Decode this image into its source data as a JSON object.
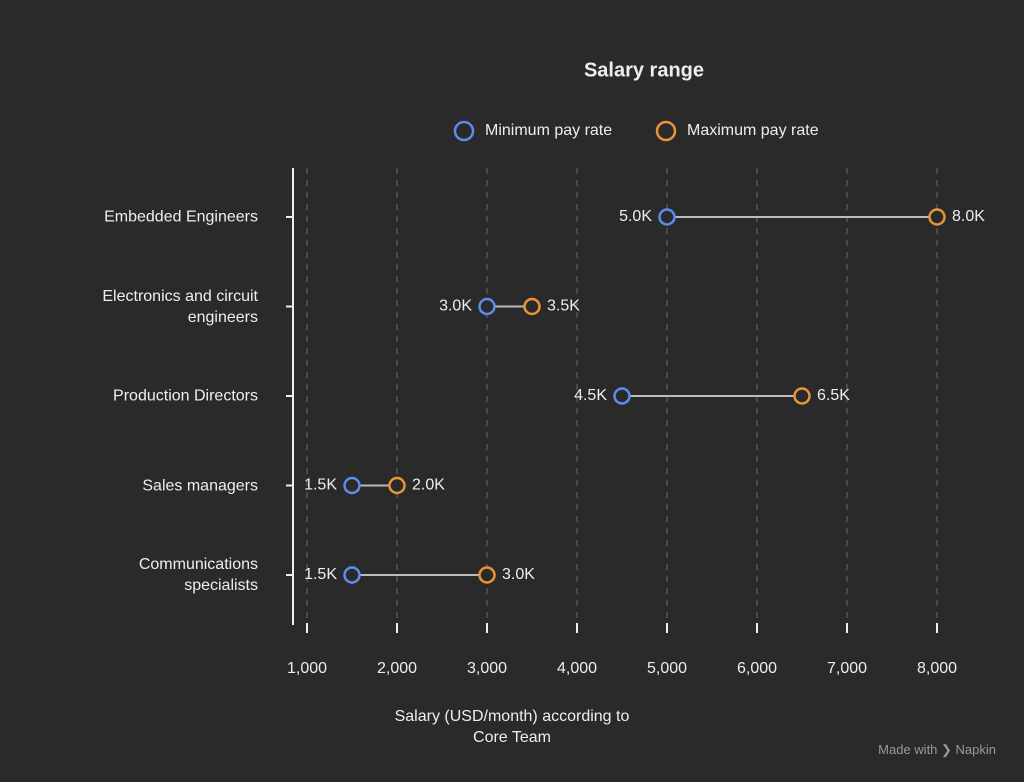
{
  "chart_data": {
    "type": "dumbbell",
    "title": "Salary range",
    "categories": [
      "Embedded Engineers",
      "Electronics and circuit engineers",
      "Production Directors",
      "Sales managers",
      "Communications specialists"
    ],
    "series": [
      {
        "name": "Minimum pay rate",
        "color": "#5b8def",
        "values": [
          5000,
          3000,
          4500,
          1500,
          1500
        ],
        "value_labels": [
          "5.0K",
          "3.0K",
          "4.5K",
          "1.5K",
          "1.5K"
        ]
      },
      {
        "name": "Maximum pay rate",
        "color": "#e8953a",
        "values": [
          8000,
          3500,
          6500,
          2000,
          3000
        ],
        "value_labels": [
          "8.0K",
          "3.5K",
          "6.5K",
          "2.0K",
          "3.0K"
        ]
      }
    ],
    "x_label": "Salary (USD/month) according to Core Team",
    "xlim": [
      1000,
      8000
    ],
    "xticks": [
      {
        "value": 1000,
        "label": "1,000"
      },
      {
        "value": 2000,
        "label": "2,000"
      },
      {
        "value": 3000,
        "label": "3,000"
      },
      {
        "value": 4000,
        "label": "4,000"
      },
      {
        "value": 5000,
        "label": "5,000"
      },
      {
        "value": 6000,
        "label": "6,000"
      },
      {
        "value": 7000,
        "label": "7,000"
      },
      {
        "value": 8000,
        "label": "8,000"
      }
    ],
    "grid": true,
    "legend": "top"
  },
  "watermark": {
    "prefix": "Made with",
    "brand": "Napkin"
  }
}
